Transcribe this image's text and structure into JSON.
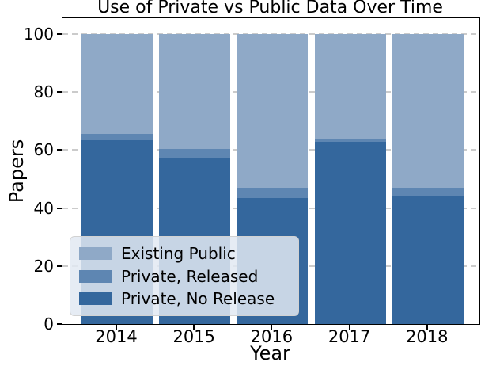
{
  "figure": {
    "title": "Use of Private vs Public Data Over Time",
    "xlabel": "Year",
    "ylabel": "Papers"
  },
  "chart_data": {
    "type": "bar",
    "stacked": true,
    "title": "Use of Private vs Public Data Over Time",
    "xlabel": "Year",
    "ylabel": "Papers",
    "categories": [
      "2014",
      "2015",
      "2016",
      "2017",
      "2018"
    ],
    "series": [
      {
        "name": "Private, No Release",
        "color": "#34679D",
        "values": [
          63.5,
          57,
          43.5,
          63,
          44
        ]
      },
      {
        "name": "Private, Released",
        "color": "#5E86B2",
        "values": [
          2,
          3.5,
          3.5,
          1,
          3
        ]
      },
      {
        "name": "Existing Public",
        "color": "#8FA9C7",
        "values": [
          34.5,
          39.5,
          53,
          36,
          53
        ]
      }
    ],
    "stack_order": "bottom-to-top",
    "bar_totals": [
      100,
      100,
      100,
      100,
      100
    ],
    "yticks": [
      0,
      20,
      40,
      60,
      80,
      100
    ],
    "ylim": [
      0,
      105.5
    ],
    "grid": {
      "axis": "y",
      "style": "dashed",
      "color": "#cbcbcb"
    },
    "legend": {
      "position": "lower-left",
      "entries": [
        "Existing Public",
        "Private, Released",
        "Private, No Release"
      ]
    }
  }
}
